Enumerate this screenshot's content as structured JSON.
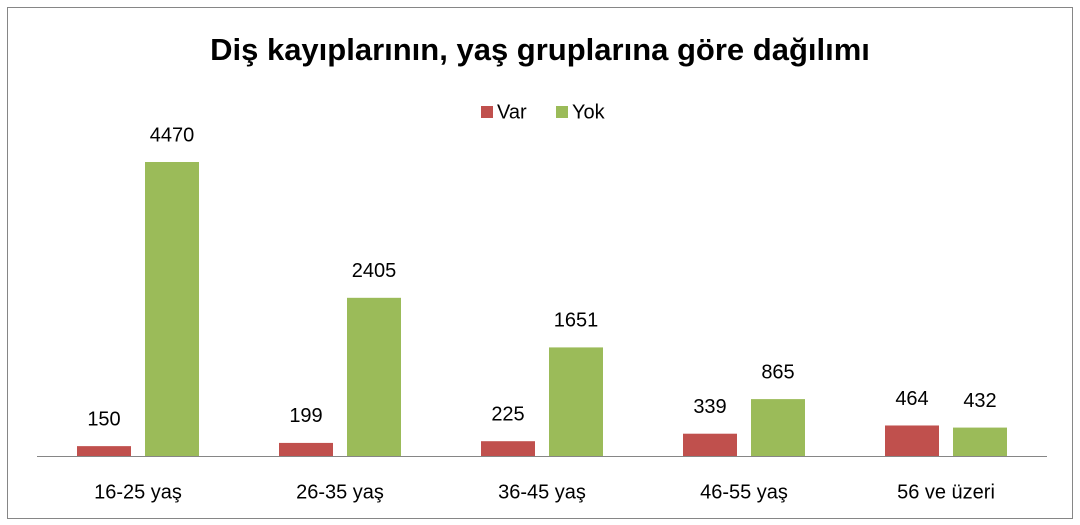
{
  "chart_data": {
    "type": "bar",
    "title": "Diş kayıplarının, yaş gruplarına göre dağılımı",
    "categories": [
      "16-25 yaş",
      "26-35 yaş",
      "36-45 yaş",
      "46-55 yaş",
      "56 ve üzeri"
    ],
    "series": [
      {
        "name": "Var",
        "color": "#c0504d",
        "values": [
          150,
          199,
          225,
          339,
          464
        ]
      },
      {
        "name": "Yok",
        "color": "#9bbb59",
        "values": [
          4470,
          2405,
          1651,
          865,
          432
        ]
      }
    ],
    "legend": "top"
  }
}
